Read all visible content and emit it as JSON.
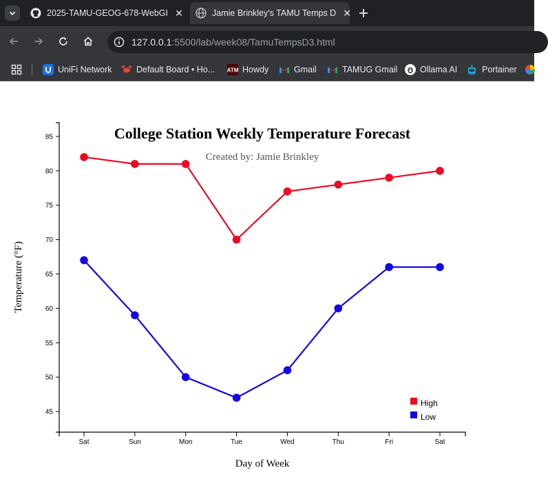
{
  "browser": {
    "tabs": [
      {
        "title": "2025-TAMU-GEOG-678-WebGI",
        "icon": "github-icon",
        "active": false
      },
      {
        "title": "Jamie Brinkley's TAMU Temps D",
        "icon": "globe-icon",
        "active": true
      }
    ],
    "url": {
      "host": "127.0.0.1",
      "rest": ":5500/lab/week08/TamuTempsD3.html"
    },
    "bookmarks": [
      {
        "label": "UniFi Network",
        "icon": "unifi-icon",
        "color": "#1a73e8"
      },
      {
        "label": "Default Board • Ho...",
        "icon": "crab-icon",
        "color": "#e8453c"
      },
      {
        "label": "Howdy",
        "icon": "tamu-icon",
        "color": "#500000"
      },
      {
        "label": "Gmail",
        "icon": "gmail-icon",
        "color": "#ea4335"
      },
      {
        "label": "TAMUG Gmail",
        "icon": "gmail-icon",
        "color": "#ea4335"
      },
      {
        "label": "Ollama AI",
        "icon": "ollama-icon",
        "color": "#ffffff"
      },
      {
        "label": "Portainer",
        "icon": "portainer-icon",
        "color": "#13bef9"
      }
    ]
  },
  "chart_data": {
    "type": "line",
    "title": "College Station Weekly Temperature Forecast",
    "subtitle": "Created by: Jamie Brinkley",
    "xlabel": "Day of Week",
    "ylabel": "Temperature (°F)",
    "categories": [
      "Sat",
      "Sun",
      "Mon",
      "Tue",
      "Wed",
      "Thu",
      "Fri",
      "Sat"
    ],
    "series": [
      {
        "name": "High",
        "color": "#ee0a22",
        "values": [
          82,
          81,
          81,
          70,
          77,
          78,
          79,
          80
        ]
      },
      {
        "name": "Low",
        "color": "#1405e6",
        "values": [
          67,
          59,
          50,
          47,
          51,
          60,
          66,
          66
        ]
      }
    ],
    "yticks": [
      45,
      50,
      55,
      60,
      65,
      70,
      75,
      80,
      85
    ],
    "ylim": [
      42,
      87
    ],
    "grid": false,
    "legend_position": "bottom-right"
  }
}
